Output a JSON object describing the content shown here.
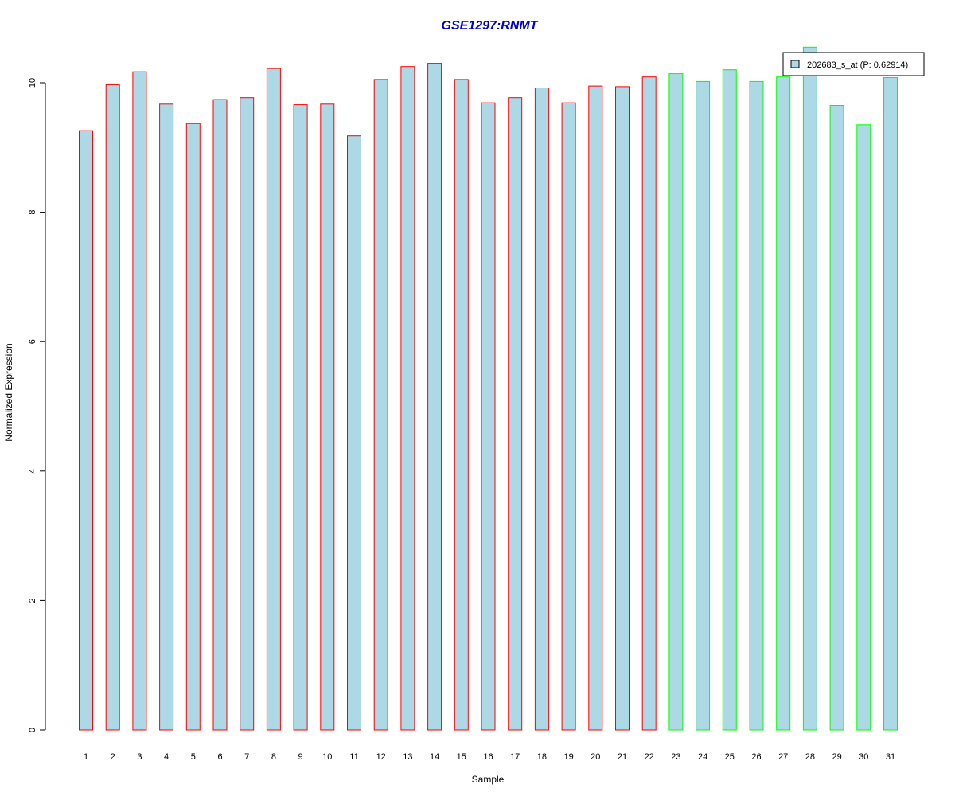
{
  "chart_data": {
    "type": "bar",
    "title": "GSE1297:RNMT",
    "xlabel": "Sample",
    "ylabel": "Normalized Expression",
    "ylim": [
      0,
      10.5
    ],
    "yticks": [
      0,
      2,
      4,
      6,
      8,
      10
    ],
    "grid": false,
    "legend_position": "top-right",
    "categories": [
      "1",
      "2",
      "3",
      "4",
      "5",
      "6",
      "7",
      "8",
      "9",
      "10",
      "11",
      "12",
      "13",
      "14",
      "15",
      "16",
      "17",
      "18",
      "19",
      "20",
      "21",
      "22",
      "23",
      "24",
      "25",
      "26",
      "27",
      "28",
      "29",
      "30",
      "31"
    ],
    "series": [
      {
        "name": "202683_s_at (P: 0.62914)",
        "values": [
          9.26,
          9.97,
          10.17,
          9.67,
          9.37,
          9.74,
          9.77,
          10.22,
          9.66,
          9.67,
          9.18,
          10.05,
          10.25,
          10.3,
          10.05,
          9.69,
          9.77,
          9.92,
          9.69,
          9.95,
          9.94,
          10.09,
          10.14,
          10.02,
          10.2,
          10.02,
          10.09,
          10.55,
          9.65,
          9.35,
          10.08
        ],
        "groups": [
          "red",
          "red",
          "red",
          "red",
          "red",
          "red",
          "red",
          "red",
          "red",
          "red",
          "red",
          "red",
          "red",
          "red",
          "red",
          "red",
          "red",
          "red",
          "red",
          "red",
          "red",
          "red",
          "green",
          "green",
          "green",
          "green",
          "green",
          "green",
          "green",
          "green",
          "green"
        ]
      }
    ],
    "colors": {
      "fill": "#add8e6",
      "red_border": "#ff0000",
      "green_border": "#00ff00",
      "title": "#0000cd",
      "axis": "#000000"
    }
  }
}
